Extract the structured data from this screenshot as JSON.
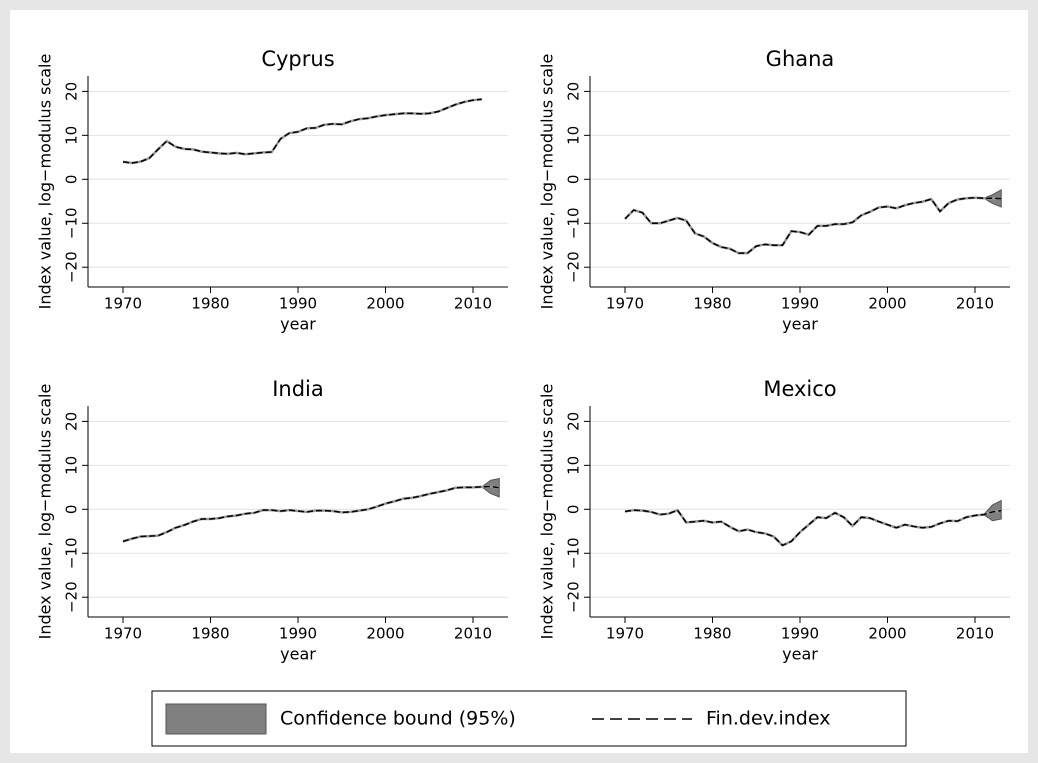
{
  "chart_data": [
    {
      "type": "line",
      "title": "Cyprus",
      "xlabel": "year",
      "ylabel": "Index value, log−modulus scale",
      "x": [
        1970,
        1971,
        1972,
        1973,
        1974,
        1975,
        1976,
        1977,
        1978,
        1979,
        1980,
        1981,
        1982,
        1983,
        1984,
        1985,
        1986,
        1987,
        1988,
        1989,
        1990,
        1991,
        1992,
        1993,
        1994,
        1995,
        1996,
        1997,
        1998,
        1999,
        2000,
        2001,
        2002,
        2003,
        2004,
        2005,
        2006,
        2007,
        2008,
        2009,
        2010,
        2011
      ],
      "series": [
        {
          "values": [
            4,
            3.7,
            4,
            4.8,
            6.8,
            8.7,
            7.4,
            6.9,
            6.8,
            6.3,
            6.1,
            5.9,
            5.8,
            6,
            5.7,
            5.9,
            6.1,
            6.2,
            9.2,
            10.5,
            10.8,
            11.6,
            11.7,
            12.4,
            12.6,
            12.5,
            13.2,
            13.7,
            13.9,
            14.3,
            14.6,
            14.8,
            15,
            15,
            14.9,
            15,
            15.4,
            16.2,
            17,
            17.6,
            18,
            18.2
          ]
        }
      ],
      "xlim": [
        1966,
        2014
      ],
      "xticks": [
        1970,
        1980,
        1990,
        2000,
        2010
      ],
      "ylim": [
        -24.5,
        23.5
      ],
      "yticks": [
        {
          "value": -20,
          "label": "−20"
        },
        {
          "value": -10,
          "label": "−10"
        },
        0,
        10,
        20
      ],
      "grid": true
    },
    {
      "type": "line",
      "title": "Ghana",
      "xlabel": "year",
      "ylabel": "Index value, log−modulus scale",
      "x": [
        1970,
        1971,
        1972,
        1973,
        1974,
        1975,
        1976,
        1977,
        1978,
        1979,
        1980,
        1981,
        1982,
        1983,
        1984,
        1985,
        1986,
        1987,
        1988,
        1989,
        1990,
        1991,
        1992,
        1993,
        1994,
        1995,
        1996,
        1997,
        1998,
        1999,
        2000,
        2001,
        2002,
        2003,
        2004,
        2005,
        2006,
        2007,
        2008,
        2009,
        2010,
        2011,
        2012,
        2013
      ],
      "series": [
        {
          "values": [
            -9,
            -7,
            -7.6,
            -10,
            -10,
            -9.4,
            -8.8,
            -9.4,
            -12.3,
            -13,
            -14.5,
            -15.4,
            -15.8,
            -16.8,
            -16.8,
            -15.2,
            -14.8,
            -15,
            -15,
            -11.8,
            -12,
            -12.6,
            -10.6,
            -10.6,
            -10.2,
            -10.2,
            -9.8,
            -8.2,
            -7.4,
            -6.4,
            -6.2,
            -6.6,
            -5.9,
            -5.4,
            -5.1,
            -4.5,
            -7.3,
            -5.4,
            -4.6,
            -4.3,
            -4.2,
            -4.3,
            -4.3,
            -4.4
          ]
        }
      ],
      "band": {
        "x": [
          2011,
          2012,
          2013
        ],
        "lower": [
          -4.3,
          -5.5,
          -6.3
        ],
        "upper": [
          -4.3,
          -3.5,
          -2.4
        ]
      },
      "xlim": [
        1966,
        2014
      ],
      "xticks": [
        1970,
        1980,
        1990,
        2000,
        2010
      ],
      "ylim": [
        -24.5,
        23.5
      ],
      "yticks": [
        {
          "value": -20,
          "label": "−20"
        },
        {
          "value": -10,
          "label": "−10"
        },
        0,
        10,
        20
      ],
      "grid": true
    },
    {
      "type": "line",
      "title": "India",
      "xlabel": "year",
      "ylabel": "Index value, log−modulus scale",
      "x": [
        1970,
        1971,
        1972,
        1973,
        1974,
        1975,
        1976,
        1977,
        1978,
        1979,
        1980,
        1981,
        1982,
        1983,
        1984,
        1985,
        1986,
        1987,
        1988,
        1989,
        1990,
        1991,
        1992,
        1993,
        1994,
        1995,
        1996,
        1997,
        1998,
        1999,
        2000,
        2001,
        2002,
        2003,
        2004,
        2005,
        2006,
        2007,
        2008,
        2009,
        2010,
        2011,
        2012,
        2013
      ],
      "series": [
        {
          "values": [
            -7.3,
            -6.7,
            -6.2,
            -6.1,
            -6,
            -5.2,
            -4.2,
            -3.6,
            -2.8,
            -2.2,
            -2.2,
            -2,
            -1.6,
            -1.4,
            -1,
            -0.8,
            -0.2,
            -0.2,
            -0.4,
            -0.2,
            -0.4,
            -0.6,
            -0.3,
            -0.3,
            -0.4,
            -0.7,
            -0.6,
            -0.3,
            0,
            0.6,
            1.3,
            1.8,
            2.4,
            2.6,
            3,
            3.5,
            3.9,
            4.3,
            4.9,
            5,
            5,
            5.1,
            5.2,
            4.9
          ]
        }
      ],
      "band": {
        "x": [
          2011,
          2012,
          2013
        ],
        "lower": [
          5.1,
          3.6,
          2.8
        ],
        "upper": [
          5.1,
          6.6,
          7
        ]
      },
      "xlim": [
        1966,
        2014
      ],
      "xticks": [
        1970,
        1980,
        1990,
        2000,
        2010
      ],
      "ylim": [
        -24.5,
        23.5
      ],
      "yticks": [
        {
          "value": -20,
          "label": "−20"
        },
        {
          "value": -10,
          "label": "−10"
        },
        0,
        10,
        20
      ],
      "grid": true
    },
    {
      "type": "line",
      "title": "Mexico",
      "xlabel": "year",
      "ylabel": "Index value, log−modulus scale",
      "x": [
        1970,
        1971,
        1972,
        1973,
        1974,
        1975,
        1976,
        1977,
        1978,
        1979,
        1980,
        1981,
        1982,
        1983,
        1984,
        1985,
        1986,
        1987,
        1988,
        1989,
        1990,
        1991,
        1992,
        1993,
        1994,
        1995,
        1996,
        1997,
        1998,
        1999,
        2000,
        2001,
        2002,
        2003,
        2004,
        2005,
        2006,
        2007,
        2008,
        2009,
        2010,
        2011,
        2012,
        2013
      ],
      "series": [
        {
          "values": [
            -0.5,
            -0.2,
            -0.3,
            -0.6,
            -1.2,
            -1,
            -0.2,
            -3,
            -2.8,
            -2.6,
            -3,
            -2.8,
            -4,
            -5,
            -4.6,
            -5.2,
            -5.5,
            -6.2,
            -8.2,
            -7.3,
            -5.2,
            -3.5,
            -1.8,
            -2,
            -0.8,
            -1.8,
            -3.8,
            -1.8,
            -2,
            -2.8,
            -3.5,
            -4.2,
            -3.5,
            -3.9,
            -4.2,
            -4,
            -3.2,
            -2.6,
            -2.7,
            -1.8,
            -1.4,
            -1.2,
            -0.6,
            -0.3
          ]
        }
      ],
      "band": {
        "x": [
          2011,
          2012,
          2013
        ],
        "lower": [
          -1.2,
          -2.6,
          -2.2
        ],
        "upper": [
          -1.2,
          1,
          2
        ]
      },
      "xlim": [
        1966,
        2014
      ],
      "xticks": [
        1970,
        1980,
        1990,
        2000,
        2010
      ],
      "ylim": [
        -24.5,
        23.5
      ],
      "yticks": [
        {
          "value": -20,
          "label": "−20"
        },
        {
          "value": -10,
          "label": "−10"
        },
        0,
        10,
        20
      ],
      "grid": true
    }
  ],
  "legend": {
    "position": "bottom",
    "items": [
      {
        "name": "Confidence bound (95%)",
        "color": "#808080",
        "kind": "area"
      },
      {
        "name": "Fin.dev.index",
        "color": "#000000",
        "kind": "dashed"
      }
    ]
  }
}
